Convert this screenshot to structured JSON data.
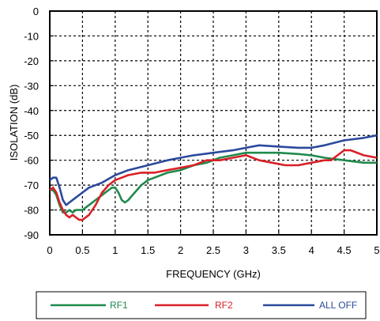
{
  "chart_data": {
    "type": "line",
    "title": "",
    "xlabel": "FREQUENCY (GHz)",
    "ylabel": "ISOLATION (dB)",
    "xlim": [
      0,
      5
    ],
    "ylim": [
      -90,
      0
    ],
    "x_ticks": [
      0,
      0.5,
      1,
      1.5,
      2,
      2.5,
      3,
      3.5,
      4,
      4.5,
      5
    ],
    "x_tick_labels": [
      "0",
      "0.5",
      "1",
      "1.5",
      "2",
      "2.5",
      "3",
      "3.5",
      "4",
      "4.5",
      "5"
    ],
    "y_ticks": [
      0,
      -10,
      -20,
      -30,
      -40,
      -50,
      -60,
      -70,
      -80,
      -90
    ],
    "y_tick_labels": [
      "0",
      "-10",
      "-20",
      "-30",
      "-40",
      "-50",
      "-60",
      "-70",
      "-80",
      "-90"
    ],
    "grid": true,
    "legend_position": "bottom",
    "series": [
      {
        "name": "RF1",
        "color": "#1f8a4c",
        "x": [
          0,
          0.05,
          0.1,
          0.15,
          0.2,
          0.25,
          0.3,
          0.35,
          0.4,
          0.5,
          0.6,
          0.7,
          0.8,
          0.9,
          0.95,
          1.0,
          1.05,
          1.1,
          1.15,
          1.2,
          1.3,
          1.4,
          1.5,
          1.6,
          1.8,
          2.0,
          2.2,
          2.4,
          2.6,
          2.8,
          3.0,
          3.2,
          3.5,
          3.8,
          4.0,
          4.2,
          4.5,
          4.8,
          5.0
        ],
        "y": [
          -72,
          -72,
          -74,
          -78,
          -81,
          -81,
          -80,
          -81,
          -80,
          -80,
          -78,
          -76,
          -74,
          -72,
          -71,
          -71,
          -73,
          -76,
          -77,
          -76,
          -73,
          -70,
          -68,
          -67,
          -65,
          -64,
          -62,
          -61,
          -59,
          -58,
          -57,
          -57,
          -57,
          -57.5,
          -58,
          -59,
          -60,
          -61,
          -61
        ]
      },
      {
        "name": "RF2",
        "color": "#d92027",
        "x": [
          0,
          0.05,
          0.1,
          0.15,
          0.2,
          0.25,
          0.3,
          0.35,
          0.4,
          0.45,
          0.5,
          0.55,
          0.6,
          0.7,
          0.8,
          0.9,
          1.0,
          1.1,
          1.2,
          1.4,
          1.6,
          1.8,
          2.0,
          2.2,
          2.4,
          2.6,
          2.8,
          3.0,
          3.2,
          3.4,
          3.6,
          3.8,
          4.0,
          4.2,
          4.3,
          4.4,
          4.5,
          4.6,
          4.8,
          5.0
        ],
        "y": [
          -72,
          -71,
          -73,
          -77,
          -80,
          -82,
          -83,
          -82,
          -83,
          -84,
          -84,
          -83,
          -82,
          -78,
          -73,
          -70,
          -68,
          -67,
          -66,
          -65,
          -65,
          -64,
          -63,
          -62,
          -60,
          -60,
          -59,
          -58,
          -60,
          -61,
          -62,
          -62,
          -61,
          -60,
          -60,
          -58,
          -56,
          -56,
          -58,
          -59
        ]
      },
      {
        "name": "ALL OFF",
        "color": "#2b4a9c",
        "x": [
          0,
          0.05,
          0.1,
          0.15,
          0.2,
          0.25,
          0.3,
          0.4,
          0.5,
          0.6,
          0.8,
          1.0,
          1.2,
          1.5,
          1.8,
          2.0,
          2.2,
          2.5,
          2.8,
          3.0,
          3.2,
          3.5,
          3.8,
          4.0,
          4.2,
          4.5,
          4.8,
          5.0
        ],
        "y": [
          -68,
          -67,
          -67,
          -71,
          -76,
          -78,
          -77,
          -75,
          -73,
          -71,
          -69,
          -66,
          -64,
          -62,
          -60,
          -59,
          -58,
          -57,
          -56,
          -55,
          -54,
          -54.5,
          -55,
          -55,
          -54,
          -52,
          -51,
          -50
        ]
      }
    ]
  }
}
